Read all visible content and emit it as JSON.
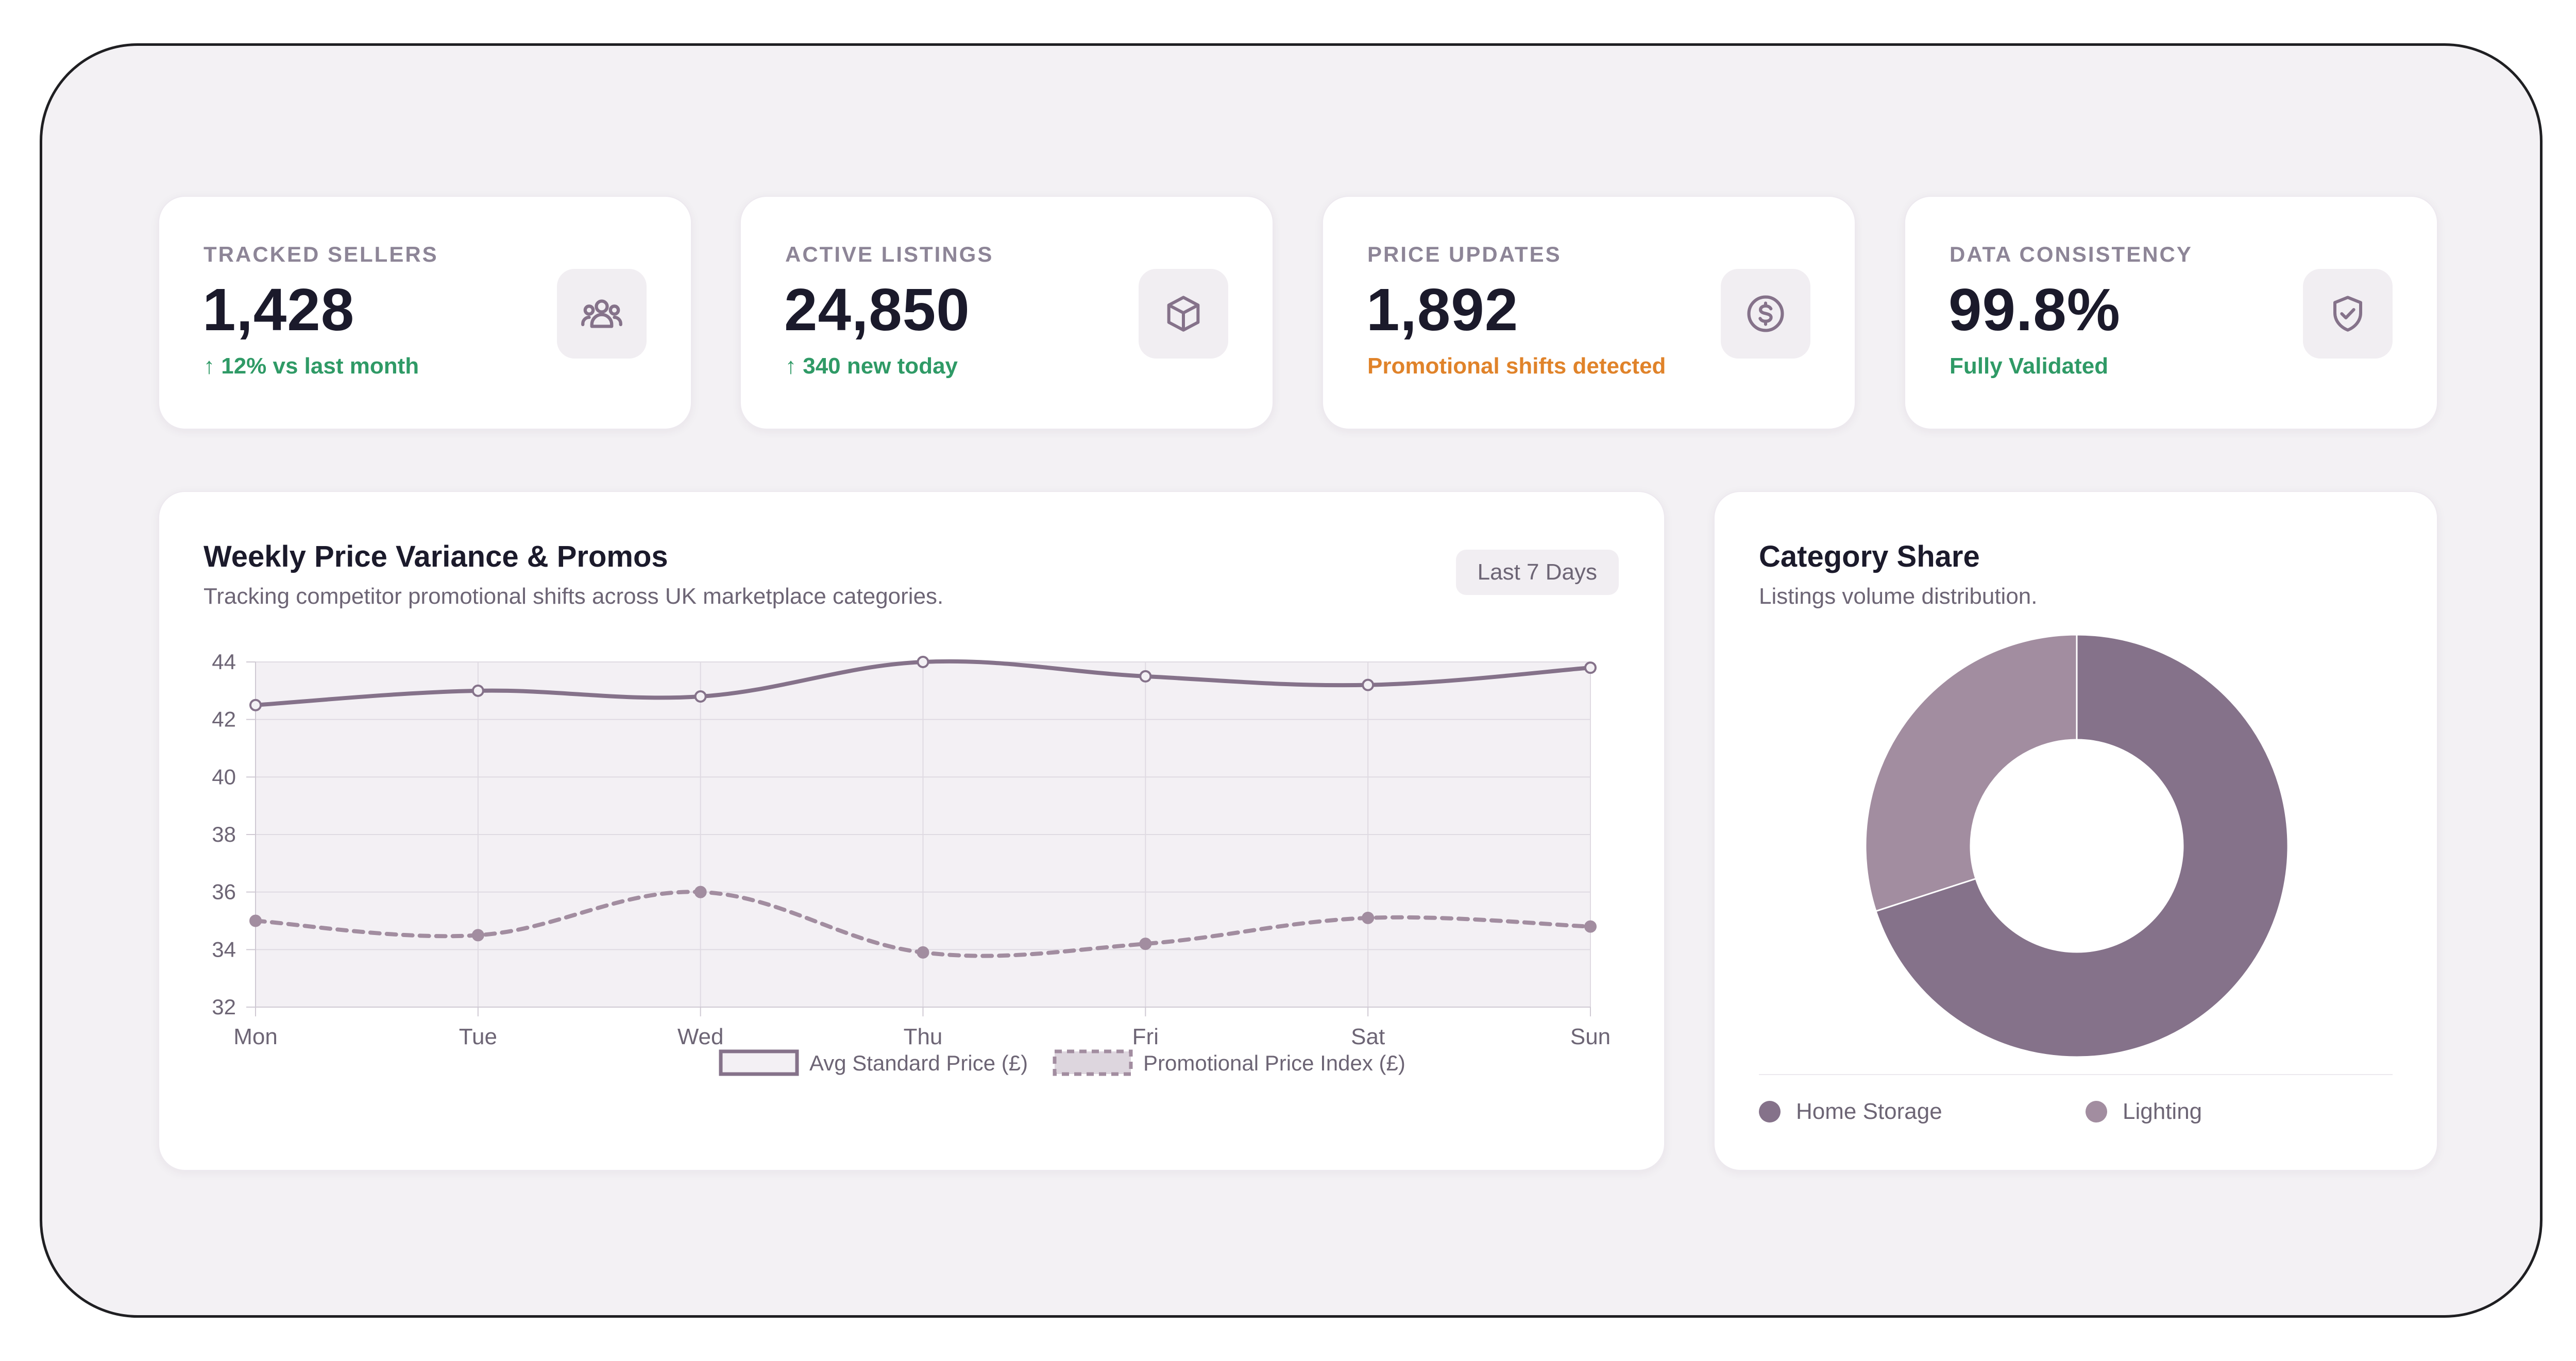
{
  "colors": {
    "accent": "#85728a",
    "accent_light": "#a28da0",
    "positive": "#2f9a66",
    "warning": "#e0832a"
  },
  "stats": [
    {
      "label": "TRACKED SELLERS",
      "value": "1,428",
      "note": "↑ 12% vs last month",
      "note_tone": "positive",
      "icon": "users-icon"
    },
    {
      "label": "ACTIVE LISTINGS",
      "value": "24,850",
      "note": "↑ 340 new today",
      "note_tone": "positive",
      "icon": "box-icon"
    },
    {
      "label": "PRICE UPDATES",
      "value": "1,892",
      "note": "Promotional shifts detected",
      "note_tone": "warning",
      "icon": "dollar-circle-icon"
    },
    {
      "label": "DATA CONSISTENCY",
      "value": "99.8%",
      "note": "Fully Validated",
      "note_tone": "positive",
      "icon": "shield-check-icon"
    }
  ],
  "line_card": {
    "title": "Weekly Price Variance & Promos",
    "subtitle": "Tracking competitor promotional shifts across UK marketplace categories.",
    "range_button": "Last 7 Days"
  },
  "donut_card": {
    "title": "Category Share",
    "subtitle": "Listings volume distribution."
  },
  "chart_data": [
    {
      "type": "line",
      "x": [
        "Mon",
        "Tue",
        "Wed",
        "Thu",
        "Fri",
        "Sat",
        "Sun"
      ],
      "yticks": [
        44,
        42,
        40,
        38,
        36,
        34,
        32
      ],
      "ylim": [
        32,
        44
      ],
      "grid": true,
      "legend": "bottom",
      "series": [
        {
          "name": "Avg Standard Price (£)",
          "values": [
            42.5,
            43.0,
            42.8,
            44.0,
            43.5,
            43.2,
            43.8
          ],
          "style": "solid"
        },
        {
          "name": "Promotional Price Index (£)",
          "values": [
            35.0,
            34.5,
            36.0,
            33.9,
            34.2,
            35.1,
            34.8
          ],
          "style": "dashed"
        }
      ]
    },
    {
      "type": "pie",
      "donut": true,
      "legend": "bottom",
      "slices": [
        {
          "name": "Home Storage",
          "value": 70,
          "color": "#85728a"
        },
        {
          "name": "Lighting",
          "value": 30,
          "color": "#a28da0"
        }
      ]
    }
  ]
}
